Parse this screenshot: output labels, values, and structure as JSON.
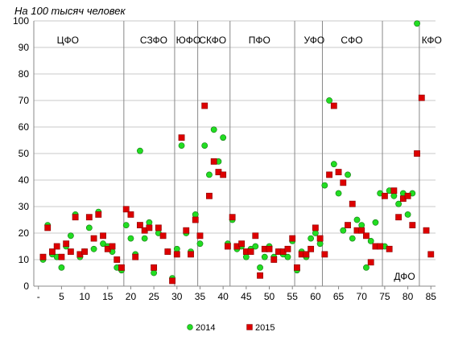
{
  "chart_data": {
    "type": "scatter",
    "subtitle": "На 100 тысяч человек",
    "xlim": [
      -1,
      86
    ],
    "ylim": [
      0,
      100
    ],
    "x_ticks": [
      0,
      5,
      10,
      15,
      20,
      25,
      30,
      35,
      40,
      45,
      50,
      55,
      60,
      65,
      70,
      75,
      80,
      85
    ],
    "x_tick_labels": [
      "-",
      "5",
      "10",
      "15",
      "20",
      "25",
      "30",
      "35",
      "40",
      "45",
      "50",
      "55",
      "60",
      "65",
      "70",
      "75",
      "80",
      "85"
    ],
    "y_ticks": [
      0,
      10,
      20,
      30,
      40,
      50,
      60,
      70,
      80,
      90,
      100
    ],
    "grid": {
      "horizontal": true,
      "vertical": false
    },
    "district_dividers": [
      18.5,
      29.5,
      34.5,
      41.5,
      55.5,
      61.5,
      74.5,
      82.5
    ],
    "districts": [
      {
        "label": "ЦФО",
        "x": 4,
        "y": 93
      },
      {
        "label": "СЗФО",
        "x": 22,
        "y": 93
      },
      {
        "label": "ЮФО",
        "x": 29.8,
        "y": 93
      },
      {
        "label": "СКФО",
        "x": 34.8,
        "y": 93
      },
      {
        "label": "ПФО",
        "x": 45.5,
        "y": 93
      },
      {
        "label": "УФО",
        "x": 57.5,
        "y": 93
      },
      {
        "label": "СФО",
        "x": 65.5,
        "y": 93
      },
      {
        "label": "ДФО",
        "x": 77,
        "y": 4
      },
      {
        "label": "КФО",
        "x": 83,
        "y": 93
      }
    ],
    "legend_position": "bottom",
    "series": [
      {
        "name": "2014",
        "marker": "circle",
        "color": "#22dd22",
        "points": [
          [
            1,
            10
          ],
          [
            2,
            23
          ],
          [
            3,
            12
          ],
          [
            4,
            11
          ],
          [
            5,
            7
          ],
          [
            6,
            15
          ],
          [
            7,
            19
          ],
          [
            8,
            27
          ],
          [
            9,
            11
          ],
          [
            10,
            13
          ],
          [
            11,
            22
          ],
          [
            12,
            14
          ],
          [
            13,
            28
          ],
          [
            14,
            16
          ],
          [
            15,
            15
          ],
          [
            16,
            13
          ],
          [
            17,
            7
          ],
          [
            18,
            6
          ],
          [
            19,
            23
          ],
          [
            20,
            18
          ],
          [
            21,
            12
          ],
          [
            22,
            51
          ],
          [
            23,
            18
          ],
          [
            24,
            24
          ],
          [
            25,
            5
          ],
          [
            26,
            20
          ],
          [
            28,
            13
          ],
          [
            29,
            3
          ],
          [
            30,
            14
          ],
          [
            31,
            53
          ],
          [
            32,
            20
          ],
          [
            33,
            13
          ],
          [
            34,
            27
          ],
          [
            35,
            16
          ],
          [
            36,
            53
          ],
          [
            37,
            42
          ],
          [
            38,
            59
          ],
          [
            39,
            47
          ],
          [
            40,
            56
          ],
          [
            41,
            16
          ],
          [
            42,
            25
          ],
          [
            43,
            14
          ],
          [
            44,
            15
          ],
          [
            45,
            11
          ],
          [
            46,
            14
          ],
          [
            47,
            15
          ],
          [
            48,
            7
          ],
          [
            49,
            11
          ],
          [
            50,
            15
          ],
          [
            51,
            11
          ],
          [
            52,
            13
          ],
          [
            53,
            12
          ],
          [
            54,
            11
          ],
          [
            55,
            17
          ],
          [
            56,
            6
          ],
          [
            57,
            13
          ],
          [
            58,
            11
          ],
          [
            59,
            18
          ],
          [
            60,
            20
          ],
          [
            61,
            16
          ],
          [
            62,
            38
          ],
          [
            63,
            70
          ],
          [
            64,
            46
          ],
          [
            65,
            35
          ],
          [
            66,
            21
          ],
          [
            67,
            42
          ],
          [
            68,
            18
          ],
          [
            69,
            25
          ],
          [
            70,
            23
          ],
          [
            71,
            7
          ],
          [
            72,
            17
          ],
          [
            73,
            24
          ],
          [
            74,
            35
          ],
          [
            75,
            15
          ],
          [
            76,
            36
          ],
          [
            77,
            34
          ],
          [
            78,
            31
          ],
          [
            79,
            35
          ],
          [
            80,
            27
          ],
          [
            81,
            35
          ],
          [
            82,
            99
          ]
        ]
      },
      {
        "name": "2015",
        "marker": "square",
        "color": "#dd0000",
        "points": [
          [
            1,
            11
          ],
          [
            2,
            22
          ],
          [
            3,
            13
          ],
          [
            4,
            15
          ],
          [
            5,
            11
          ],
          [
            6,
            16
          ],
          [
            7,
            13
          ],
          [
            8,
            26
          ],
          [
            9,
            12
          ],
          [
            10,
            13
          ],
          [
            11,
            26
          ],
          [
            12,
            18
          ],
          [
            13,
            27
          ],
          [
            14,
            19
          ],
          [
            15,
            14
          ],
          [
            16,
            15
          ],
          [
            17,
            10
          ],
          [
            18,
            7
          ],
          [
            19,
            29
          ],
          [
            20,
            27
          ],
          [
            21,
            11
          ],
          [
            22,
            23
          ],
          [
            23,
            21
          ],
          [
            24,
            22
          ],
          [
            25,
            7
          ],
          [
            26,
            22
          ],
          [
            27,
            19
          ],
          [
            28,
            13
          ],
          [
            29,
            2
          ],
          [
            30,
            12
          ],
          [
            31,
            56
          ],
          [
            32,
            21
          ],
          [
            33,
            12
          ],
          [
            34,
            25
          ],
          [
            35,
            19
          ],
          [
            36,
            68
          ],
          [
            37,
            34
          ],
          [
            38,
            47
          ],
          [
            39,
            43
          ],
          [
            40,
            42
          ],
          [
            41,
            15
          ],
          [
            42,
            26
          ],
          [
            43,
            15
          ],
          [
            44,
            16
          ],
          [
            45,
            13
          ],
          [
            46,
            13
          ],
          [
            47,
            19
          ],
          [
            48,
            4
          ],
          [
            49,
            14
          ],
          [
            50,
            14
          ],
          [
            51,
            10
          ],
          [
            52,
            13
          ],
          [
            53,
            13
          ],
          [
            54,
            14
          ],
          [
            55,
            18
          ],
          [
            56,
            7
          ],
          [
            57,
            12
          ],
          [
            58,
            12
          ],
          [
            59,
            14
          ],
          [
            60,
            22
          ],
          [
            61,
            18
          ],
          [
            62,
            12
          ],
          [
            63,
            42
          ],
          [
            64,
            68
          ],
          [
            65,
            43
          ],
          [
            66,
            39
          ],
          [
            67,
            23
          ],
          [
            68,
            31
          ],
          [
            69,
            21
          ],
          [
            70,
            21
          ],
          [
            71,
            19
          ],
          [
            72,
            9
          ],
          [
            73,
            15
          ],
          [
            74,
            15
          ],
          [
            75,
            34
          ],
          [
            76,
            14
          ],
          [
            77,
            36
          ],
          [
            78,
            26
          ],
          [
            79,
            33
          ],
          [
            80,
            34
          ],
          [
            81,
            23
          ],
          [
            82,
            50
          ],
          [
            83,
            71
          ],
          [
            84,
            21
          ],
          [
            85,
            12
          ]
        ]
      }
    ]
  }
}
